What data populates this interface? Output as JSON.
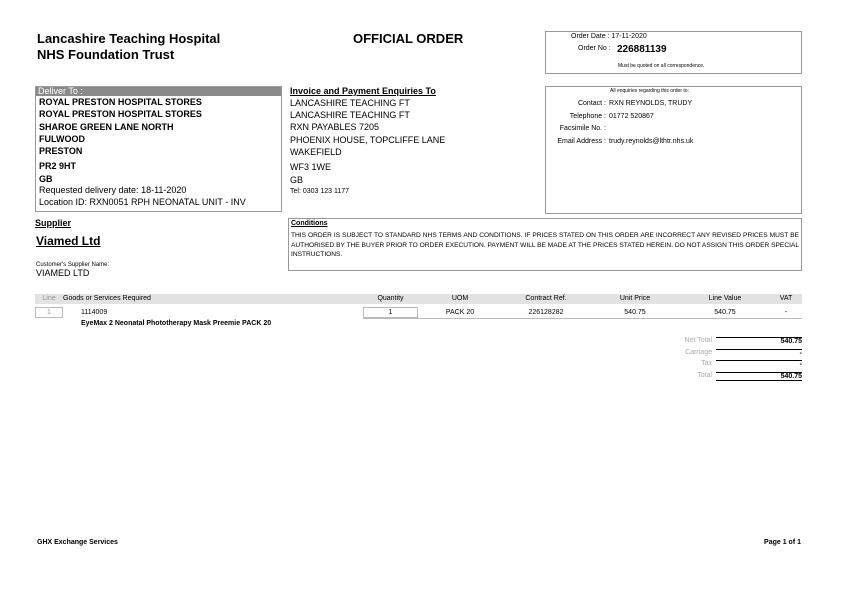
{
  "header": {
    "title_lines": [
      "Lancashire Teaching Hospital",
      "NHS Foundation Trust"
    ],
    "doc_title": "OFFICIAL ORDER",
    "order_date": "Order Date : 17-11-2020",
    "order_no_label": "Order No :",
    "order_no": "226881139",
    "order_note": "Must be quoted on all correspondence."
  },
  "deliver": {
    "heading": "Deliver To :",
    "lines": [
      "ROYAL PRESTON HOSPITAL STORES",
      "ROYAL PRESTON HOSPITAL STORES",
      "SHAROE GREEN LANE NORTH",
      "FULWOOD",
      "PRESTON",
      "PR2 9HT",
      "GB"
    ],
    "extra": [
      "Requested delivery date: 18-11-2020",
      "Location ID: RXN0051 RPH NEONATAL UNIT - INV"
    ]
  },
  "invoice": {
    "heading": "Invoice and Payment Enquiries To",
    "lines": [
      "LANCASHIRE TEACHING FT",
      "LANCASHIRE TEACHING FT",
      "RXN PAYABLES 7205",
      "PHOENIX HOUSE, TOPCLIFFE LANE",
      "WAKEFIELD",
      "WF3 1WE",
      "GB"
    ],
    "tel": "Tel: 0303 123 1177"
  },
  "enquiries": {
    "heading": "All enquiries regarding this order to:",
    "rows": [
      [
        "Contact :",
        "RXN REYNOLDS, TRUDY"
      ],
      [
        "Telephone :",
        "01772 520867"
      ],
      [
        "Facsimile No. :",
        ""
      ],
      [
        "Email Address :",
        "trudy.reynolds@lthtr.nhs.uk"
      ]
    ]
  },
  "supplier": {
    "heading": "Supplier",
    "name": "Viamed Ltd",
    "customer_label": "Customer's Supplier Name:",
    "customer_name": "VIAMED LTD"
  },
  "conditions": {
    "heading": "Conditions",
    "text": "THIS ORDER IS SUBJECT TO STANDARD NHS TERMS AND CONDITIONS. IF PRICES STATED ON THIS ORDER ARE INCORRECT ANY REVISED PRICES MUST BE AUTHORISED BY THE BUYER PRIOR TO ORDER EXECUTION. PAYMENT WILL BE MADE AT THE PRICES STATED HEREIN. DO NOT ASSIGN THIS ORDER SPECIAL INSTRUCTIONS."
  },
  "table": {
    "columns": [
      "Line",
      "Goods or Services Required",
      "Quantity",
      "UOM",
      "Contract Ref.",
      "Unit Price",
      "Line Value",
      "VAT"
    ],
    "rows": [
      {
        "line": "1",
        "code": "1114009",
        "description": "EyeMax 2 Neonatal Phototherapy Mask Preemie PACK 20",
        "quantity": "1",
        "uom": "PACK 20",
        "contract_ref": "226128282",
        "unit_price": "540.75",
        "line_value": "540.75",
        "vat": "-"
      }
    ]
  },
  "totals": [
    [
      "Net Total",
      "540.75"
    ],
    [
      "Carriage",
      "-"
    ],
    [
      "Tax",
      "-"
    ],
    [
      "Total",
      "540.75"
    ]
  ],
  "footer": {
    "left": "GHX Exchange Services",
    "right": "Page 1 of 1"
  }
}
